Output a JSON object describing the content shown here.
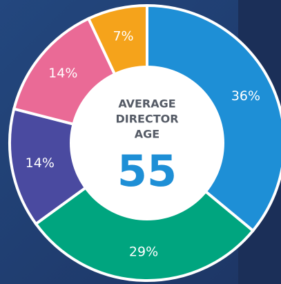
{
  "chart_data": {
    "type": "donut",
    "categories": [
      null,
      null,
      null,
      null,
      null
    ],
    "values": [
      36,
      29,
      14,
      14,
      7
    ],
    "value_labels": [
      "36%",
      "29%",
      "14%",
      "14%",
      "7%"
    ],
    "colors": [
      "#1e8fd6",
      "#00a57f",
      "#4a4aa0",
      "#ea6a96",
      "#f5a31b"
    ],
    "center_label": [
      "AVERAGE",
      "DIRECTOR",
      "AGE"
    ],
    "center_value": 55
  }
}
